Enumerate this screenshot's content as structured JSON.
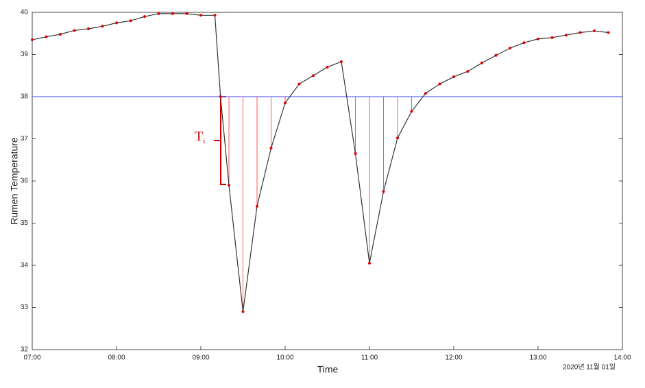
{
  "chart_data": {
    "type": "line",
    "x_label": "Time",
    "y_label": "Rumen Temperature",
    "date_label": "2020년 11월 01일",
    "annotation": "T",
    "annotation_subscript": "i",
    "threshold": 38,
    "threshold_color": "#6666ff",
    "x": [
      "07:00",
      "07:10",
      "07:20",
      "07:30",
      "07:40",
      "07:50",
      "08:00",
      "08:10",
      "08:20",
      "08:30",
      "08:40",
      "08:50",
      "09:00",
      "09:10",
      "09:14",
      "09:20",
      "09:30",
      "09:40",
      "09:50",
      "10:00",
      "10:10",
      "10:20",
      "10:30",
      "10:40",
      "10:50",
      "11:00",
      "11:10",
      "11:20",
      "11:30",
      "11:40",
      "11:50",
      "12:00",
      "12:10",
      "12:20",
      "12:30",
      "12:40",
      "12:50",
      "13:00",
      "13:10",
      "13:20",
      "13:30",
      "13:40",
      "13:50"
    ],
    "series": [
      {
        "color": "#333333",
        "marker_color": "#e00000",
        "values": [
          39.35,
          39.42,
          39.48,
          39.57,
          39.61,
          39.67,
          39.75,
          39.8,
          39.9,
          39.97,
          39.97,
          39.97,
          39.93,
          39.93,
          38.0,
          35.9,
          32.9,
          35.4,
          36.78,
          37.85,
          38.3,
          38.5,
          38.7,
          38.83,
          36.65,
          34.05,
          35.75,
          37.02,
          37.65,
          38.08,
          38.3,
          38.47,
          38.6,
          38.8,
          38.98,
          39.15,
          39.28,
          39.37,
          39.4,
          39.46,
          39.52,
          39.56,
          39.52
        ]
      }
    ],
    "xlim": [
      "07:00",
      "14:00"
    ],
    "xticks": [
      "07:00",
      "08:00",
      "09:00",
      "10:00",
      "11:00",
      "12:00",
      "13:00",
      "14:00"
    ],
    "ylim": [
      32,
      40
    ],
    "yticks": [
      32,
      33,
      34,
      35,
      36,
      37,
      38,
      39,
      40
    ],
    "grid": false
  }
}
